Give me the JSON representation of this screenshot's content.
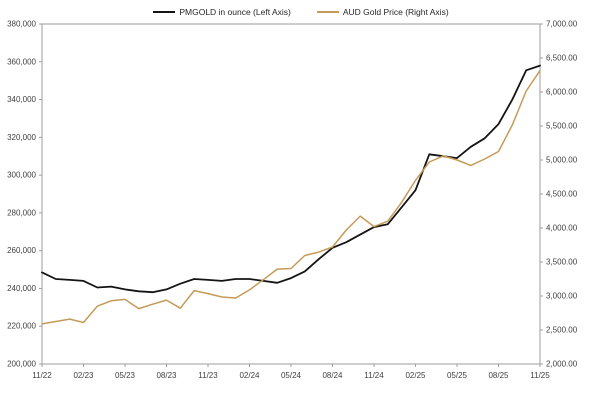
{
  "chart_data": {
    "type": "line",
    "title": "",
    "grid": "off",
    "legend_position": "top",
    "background": "#ffffff",
    "plot_border_color": "#9d9d9d",
    "tick_label_color": "#404040",
    "categories": [
      "11/22",
      "12/22",
      "01/23",
      "02/23",
      "03/23",
      "04/23",
      "05/23",
      "06/23",
      "07/23",
      "08/23",
      "09/23",
      "10/23",
      "11/23",
      "12/23",
      "01/24",
      "02/24",
      "03/24",
      "04/24",
      "05/24",
      "06/24",
      "07/24",
      "08/24",
      "09/24",
      "10/24",
      "11/24",
      "12/24",
      "01/25",
      "02/25",
      "03/25",
      "04/25",
      "05/25",
      "06/25",
      "07/25",
      "08/25",
      "09/25",
      "10/25",
      "11/25"
    ],
    "x_axis": {
      "tick_every": 3,
      "shown_tick_labels": [
        "11/22",
        "02/23",
        "05/23",
        "08/23",
        "11/23",
        "02/24",
        "05/24",
        "08/24",
        "11/24",
        "02/25",
        "05/25",
        "08/25",
        "11/25"
      ]
    },
    "left_axis": {
      "min": 200000,
      "max": 380000,
      "tick_step": 20000,
      "tick_labels": [
        "380,000",
        "360,000",
        "340,000",
        "320,000",
        "300,000",
        "280,000",
        "260,000",
        "240,000",
        "220,000",
        "200,000"
      ]
    },
    "right_axis": {
      "min": 2000,
      "max": 7000,
      "tick_step": 500,
      "tick_labels": [
        "7,000.00",
        "6,500.00",
        "6,000.00",
        "5,500.00",
        "5,000.00",
        "4,500.00",
        "4,000.00",
        "3,500.00",
        "3,000.00",
        "2,500.00",
        "2,000.00"
      ]
    },
    "series": [
      {
        "name": "PMGOLD in ounce (Left Axis)",
        "axis": "left",
        "color": "#141414",
        "stroke_width": 1.8,
        "values": [
          248500,
          245000,
          244500,
          244000,
          240500,
          241000,
          239500,
          238500,
          238000,
          239500,
          242500,
          245000,
          244500,
          244000,
          245000,
          245000,
          244000,
          243000,
          245500,
          249000,
          255500,
          261500,
          264500,
          268500,
          272500,
          274000,
          283000,
          292000,
          311000,
          310000,
          309000,
          315000,
          319500,
          327000,
          340000,
          355500,
          358000
        ]
      },
      {
        "name": "AUD Gold Price (Right Axis)",
        "axis": "right",
        "color": "#c49a58",
        "stroke_width": 1.5,
        "values": [
          2590,
          2625,
          2660,
          2610,
          2850,
          2930,
          2950,
          2815,
          2880,
          2940,
          2820,
          3080,
          3035,
          2985,
          2970,
          3090,
          3240,
          3395,
          3405,
          3595,
          3645,
          3720,
          3970,
          4175,
          4020,
          4100,
          4380,
          4700,
          4970,
          5060,
          5000,
          4920,
          5015,
          5125,
          5515,
          6015,
          6315
        ]
      }
    ]
  }
}
